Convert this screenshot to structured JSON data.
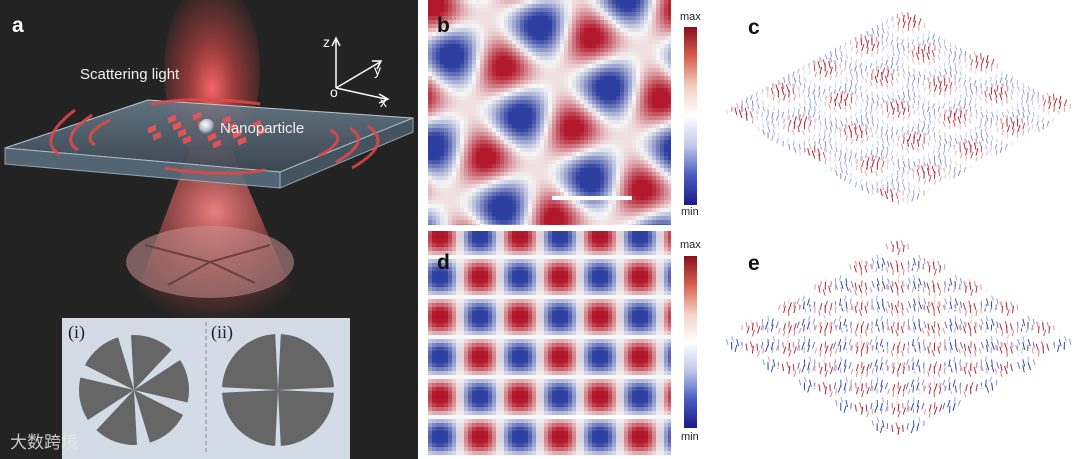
{
  "panels": {
    "a": "a",
    "b": "b",
    "c": "c",
    "d": "d",
    "e": "e"
  },
  "panel_a": {
    "scattering_label": "Scattering light",
    "nanoparticle_label": "Nanoparticle",
    "axes": {
      "z": "z",
      "y": "y",
      "x": "x",
      "origin": "o"
    },
    "inset_labels": [
      "(i)",
      "(ii)"
    ]
  },
  "colorbars": {
    "top": {
      "max": "max",
      "min": "min"
    },
    "bottom": {
      "max": "max",
      "min": "min"
    }
  },
  "watermark": "大数跨境",
  "colors": {
    "red": "#b2182b",
    "white": "#f7f7f7",
    "blue": "#2c3e9f",
    "panel_a_bg": "#232323",
    "inset_bg": "#d3dbe6",
    "sector_gray": "#666666"
  }
}
